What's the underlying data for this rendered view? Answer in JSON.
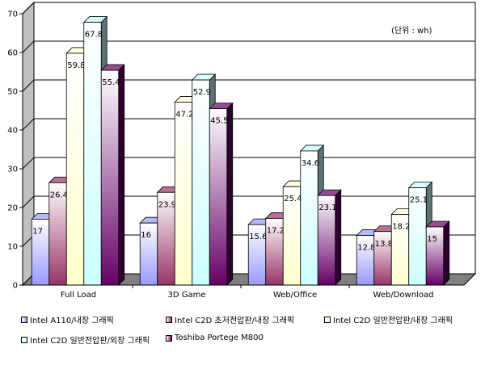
{
  "chart_data": {
    "type": "bar",
    "unit_label": "(단위 : wh)",
    "categories": [
      "Full Load",
      "3D Game",
      "Web/Office",
      "Web/Download"
    ],
    "series": [
      {
        "name": "Intel A110/내장 그래픽",
        "values": [
          17,
          16,
          15.6,
          12.8
        ],
        "labels": [
          "17",
          "16",
          "15.6",
          "12.8"
        ],
        "color": "#9999ff"
      },
      {
        "name": "Intel C2D 초저전압판/내장 그래픽",
        "values": [
          26.4,
          23.9,
          17.2,
          13.8
        ],
        "labels": [
          "26.4",
          "23.9",
          "17.2",
          "13.8"
        ],
        "color": "#993366"
      },
      {
        "name": "Intel C2D 일반전압판/내장 그래픽",
        "values": [
          59.8,
          47.2,
          25.4,
          18.2
        ],
        "labels": [
          "59.8",
          "47.2",
          "25.4",
          "18.2"
        ],
        "color": "#ffffcc"
      },
      {
        "name": "Intel C2D 일반전압판/외장 그래픽",
        "values": [
          67.8,
          52.9,
          34.6,
          25.1
        ],
        "labels": [
          "67.8",
          "52.9",
          "34.6",
          "25.1"
        ],
        "color": "#ccffff"
      },
      {
        "name": "Toshiba Portege M800",
        "values": [
          55.4,
          45.5,
          23.1,
          15
        ],
        "labels": [
          "55.4",
          "45.5",
          "23.1",
          "15"
        ],
        "color": "#660066"
      }
    ],
    "ylim": [
      0,
      70
    ],
    "yticks": [
      0,
      10,
      20,
      30,
      40,
      50,
      60,
      70
    ],
    "grid": true,
    "legend_position": "bottom"
  }
}
